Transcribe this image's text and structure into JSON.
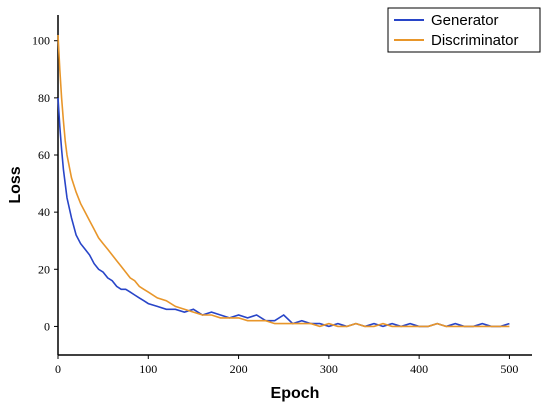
{
  "chart_data": {
    "type": "line",
    "xlabel": "Epoch",
    "ylabel": "Loss",
    "x": [
      0,
      2,
      4,
      6,
      8,
      10,
      15,
      20,
      25,
      30,
      35,
      40,
      45,
      50,
      55,
      60,
      65,
      70,
      75,
      80,
      85,
      90,
      95,
      100,
      110,
      120,
      130,
      140,
      150,
      160,
      170,
      180,
      190,
      200,
      210,
      220,
      230,
      240,
      250,
      260,
      270,
      280,
      290,
      300,
      310,
      320,
      330,
      340,
      350,
      360,
      370,
      380,
      390,
      400,
      410,
      420,
      430,
      440,
      450,
      460,
      470,
      480,
      490,
      500
    ],
    "series": [
      {
        "name": "Generator",
        "color": "#2845c8",
        "values": [
          80,
          70,
          62,
          55,
          50,
          45,
          38,
          32,
          29,
          27,
          25,
          22,
          20,
          19,
          17,
          16,
          14,
          13,
          13,
          12,
          11,
          10,
          9,
          8,
          7,
          6,
          6,
          5,
          6,
          4,
          5,
          4,
          3,
          4,
          3,
          4,
          2,
          2,
          4,
          1,
          2,
          1,
          1,
          0,
          1,
          0,
          1,
          0,
          1,
          0,
          1,
          0,
          1,
          0,
          0,
          1,
          0,
          1,
          0,
          0,
          1,
          0,
          0,
          1
        ]
      },
      {
        "name": "Discriminator",
        "color": "#e8962a",
        "values": [
          102,
          90,
          80,
          72,
          65,
          60,
          52,
          47,
          43,
          40,
          37,
          34,
          31,
          29,
          27,
          25,
          23,
          21,
          19,
          17,
          16,
          14,
          13,
          12,
          10,
          9,
          7,
          6,
          5,
          4,
          4,
          3,
          3,
          3,
          2,
          2,
          2,
          1,
          1,
          1,
          1,
          1,
          0,
          1,
          0,
          0,
          1,
          0,
          0,
          1,
          0,
          0,
          0,
          0,
          0,
          1,
          0,
          0,
          0,
          0,
          0,
          0,
          0,
          0
        ]
      }
    ],
    "xlim": [
      0,
      525
    ],
    "ylim": [
      -10,
      109
    ],
    "xticks": [
      0,
      100,
      200,
      300,
      400,
      500
    ],
    "yticks": [
      0,
      20,
      40,
      60,
      80,
      100
    ],
    "legend": "upper right"
  }
}
